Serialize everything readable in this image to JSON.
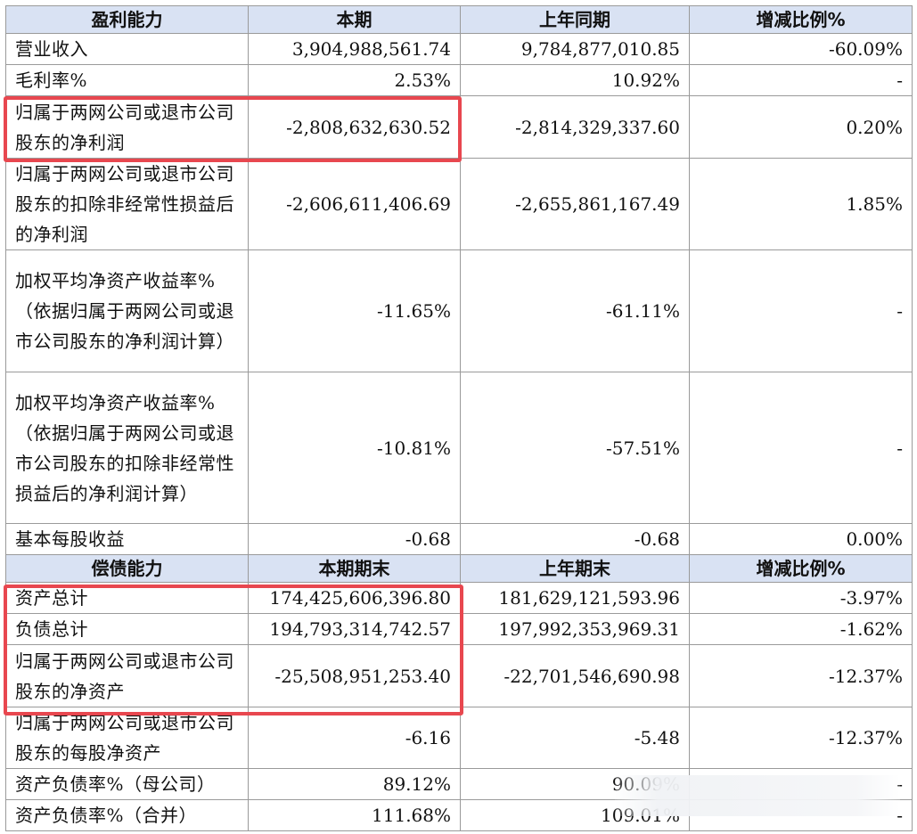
{
  "section1": {
    "headers": [
      "盈利能力",
      "本期",
      "上年同期",
      "增减比例%"
    ],
    "rows": [
      {
        "label": "营业收入",
        "cur": "3,904,988,561.74",
        "prev": "9,784,877,010.85",
        "chg": "-60.09%"
      },
      {
        "label": "毛利率%",
        "cur": "2.53%",
        "prev": "10.92%",
        "chg": "-"
      },
      {
        "label": "归属于两网公司或退市公司股东的净利润",
        "cur": "-2,808,632,630.52",
        "prev": "-2,814,329,337.60",
        "chg": "0.20%"
      },
      {
        "label": "归属于两网公司或退市公司股东的扣除非经常性损益后的净利润",
        "cur": "-2,606,611,406.69",
        "prev": "-2,655,861,167.49",
        "chg": "1.85%"
      },
      {
        "label": "加权平均净资产收益率%（依据归属于两网公司或退市公司股东的净利润计算）",
        "cur": "-11.65%",
        "prev": "-61.11%",
        "chg": "-"
      },
      {
        "label": "加权平均净资产收益率%（依据归属于两网公司或退市公司股东的扣除非经常性损益后的净利润计算）",
        "cur": "-10.81%",
        "prev": "-57.51%",
        "chg": "-"
      },
      {
        "label": "基本每股收益",
        "cur": "-0.68",
        "prev": "-0.68",
        "chg": "0.00%"
      }
    ]
  },
  "section2": {
    "headers": [
      "偿债能力",
      "本期期末",
      "上年期末",
      "增减比例%"
    ],
    "rows": [
      {
        "label": "资产总计",
        "cur": "174,425,606,396.80",
        "prev": "181,629,121,593.96",
        "chg": "-3.97%"
      },
      {
        "label": "负债总计",
        "cur": "194,793,314,742.57",
        "prev": "197,992,353,969.31",
        "chg": "-1.62%"
      },
      {
        "label": "归属于两网公司或退市公司股东的净资产",
        "cur": "-25,508,951,253.40",
        "prev": "-22,701,546,690.98",
        "chg": "-12.37%"
      },
      {
        "label": "归属于两网公司或退市公司股东的每股净资产",
        "cur": "-6.16",
        "prev": "-5.48",
        "chg": "-12.37%"
      },
      {
        "label": "资产负债率%（母公司）",
        "cur": "89.12%",
        "prev": "90.09%",
        "chg": "-"
      },
      {
        "label": "资产负债率%（合并）",
        "cur": "111.68%",
        "prev": "109.01%",
        "chg": "-"
      }
    ]
  },
  "colors": {
    "header_bg": "#d9e2f3",
    "highlight": "#e8474f",
    "border": "#9a9a9a"
  }
}
